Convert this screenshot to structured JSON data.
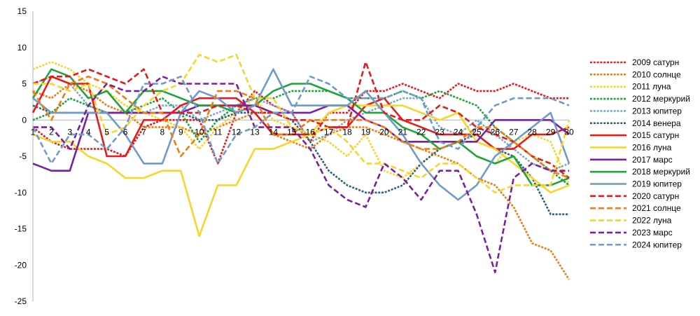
{
  "chart_data": {
    "type": "line",
    "x": [
      1,
      2,
      3,
      4,
      5,
      6,
      7,
      8,
      9,
      10,
      11,
      12,
      13,
      14,
      15,
      16,
      17,
      18,
      19,
      20,
      21,
      22,
      23,
      24,
      25,
      26,
      27,
      28,
      29,
      30
    ],
    "xtick_labels": [
      "1",
      "2",
      "3",
      "4",
      "5",
      "6",
      "7",
      "8",
      "9",
      "10",
      "11",
      "12",
      "13",
      "14",
      "15",
      "16",
      "17",
      "18",
      "19",
      "20",
      "21",
      "22",
      "23",
      "24",
      "25",
      "26",
      "27",
      "28",
      "29",
      "30"
    ],
    "ylim": [
      -25,
      15
    ],
    "ytick_values": [
      -25,
      -20,
      -15,
      -10,
      -5,
      0,
      5,
      10,
      15
    ],
    "ytick_labels": [
      "-25",
      "-20",
      "-15",
      "-10",
      "-5",
      "0",
      "5",
      "10",
      "15"
    ],
    "grid": false,
    "legend": "right",
    "series": [
      {
        "name": "2009 сатурн",
        "color": "#e41a1c",
        "style": "dotted",
        "values": [
          -1,
          -3,
          -4,
          -4,
          -4,
          -5,
          -1,
          0,
          0,
          0,
          -6,
          1,
          4,
          2,
          1,
          -3,
          1,
          1,
          4,
          4,
          5,
          4,
          3,
          5,
          4,
          4,
          5,
          4,
          3,
          3
        ]
      },
      {
        "name": "2010 солнце",
        "color": "#f07c12",
        "style": "dotted",
        "values": [
          4,
          3,
          5,
          4,
          2,
          1,
          -1,
          -1,
          -1,
          -2,
          -1,
          0,
          1,
          -2,
          -3,
          -4,
          -2,
          -1,
          -1,
          -2,
          -3,
          -4,
          -5,
          -6,
          -8,
          -9,
          -12,
          -17,
          -18,
          -22
        ]
      },
      {
        "name": "2011 луна",
        "color": "#f8d52a",
        "style": "dotted",
        "values": [
          7,
          8,
          7,
          5,
          4,
          2,
          1,
          0,
          -1,
          -4,
          -1,
          1,
          3,
          0,
          -1,
          -2,
          -3,
          -5,
          -2,
          -7,
          -8,
          -6,
          -4,
          -3,
          -5,
          -6,
          -3,
          -2,
          -3,
          -9
        ]
      },
      {
        "name": "2012 меркурий",
        "color": "#1ea53a",
        "style": "dotted",
        "values": [
          0,
          1,
          3,
          2,
          1,
          1,
          2,
          3,
          1,
          -3,
          0,
          2,
          3,
          3,
          4,
          4,
          4,
          3,
          3,
          3,
          4,
          3,
          4,
          3,
          2,
          -1,
          -3,
          -5,
          -7,
          -9
        ]
      },
      {
        "name": "2013 юпитер",
        "color": "#7fa8c9",
        "style": "dotted",
        "values": [
          5,
          6,
          5,
          2,
          1,
          1,
          1,
          2,
          2,
          0,
          1,
          2,
          3,
          2,
          1,
          -3,
          -2,
          0,
          1,
          2,
          3,
          3,
          -1,
          -2,
          0,
          -2,
          -4,
          -6,
          -7,
          -6
        ]
      },
      {
        "name": "2014 венера",
        "color": "#2f5f7f",
        "style": "dotted",
        "values": [
          2,
          1,
          1,
          1,
          1,
          1,
          1,
          1,
          1,
          0,
          0,
          1,
          1,
          1,
          0,
          -3,
          -7,
          -9,
          -10,
          -10,
          -9,
          -6,
          -4,
          -3,
          -2,
          -4,
          -5,
          -8,
          -13,
          -13
        ]
      },
      {
        "name": "2015 сатурн",
        "color": "#e41a1c",
        "style": "solid",
        "values": [
          1,
          6,
          5,
          5,
          -5,
          -5,
          0,
          0,
          2,
          3,
          3,
          3,
          1,
          -2,
          -2,
          -2,
          -1,
          -1,
          2,
          3,
          0,
          -1,
          -2,
          -2,
          -2,
          -4,
          -4,
          -2,
          -2,
          -1
        ]
      },
      {
        "name": "2016 луна",
        "color": "#f8d52a",
        "style": "solid",
        "values": [
          -2,
          -3,
          -3,
          -5,
          -6,
          -8,
          -8,
          -7,
          -7,
          -16,
          -9,
          -9,
          -4,
          -4,
          -3,
          -2,
          1,
          2,
          2,
          2,
          2,
          1,
          0,
          1,
          -3,
          -4,
          -6,
          -8,
          -10,
          -9
        ]
      },
      {
        "name": "2017 марс",
        "color": "#7b1fa2",
        "style": "solid",
        "values": [
          -6,
          -7,
          -7,
          1,
          1,
          1,
          1,
          1,
          1,
          2,
          2,
          2,
          2,
          1,
          1,
          1,
          2,
          2,
          0,
          -1,
          -3,
          -3,
          -3,
          -3,
          -3,
          0,
          0,
          0,
          0,
          -2
        ]
      },
      {
        "name": "2018 меркурий",
        "color": "#1ea53a",
        "style": "solid",
        "values": [
          3,
          7,
          6,
          3,
          4,
          1,
          4,
          4,
          3,
          2,
          2,
          1,
          2,
          4,
          5,
          5,
          4,
          3,
          1,
          1,
          -1,
          -2,
          -4,
          -3,
          -5,
          -6,
          -5,
          -9,
          -9,
          -8
        ]
      },
      {
        "name": "2019 юпитер",
        "color": "#6f9acb",
        "style": "solid",
        "values": [
          3,
          1,
          1,
          1,
          1,
          -2,
          -6,
          -6,
          1,
          4,
          3,
          1,
          2,
          7,
          2,
          2,
          2,
          2,
          4,
          1,
          -2,
          -6,
          -9,
          -11,
          -9,
          -5,
          -3,
          -1,
          1,
          -6
        ]
      },
      {
        "name": "2020 сатурн",
        "color": "#e41a1c",
        "style": "dashed",
        "values": [
          5,
          6,
          6,
          7,
          6,
          5,
          7,
          1,
          1,
          1,
          2,
          2,
          1,
          1,
          0,
          0,
          -1,
          -1,
          8,
          1,
          0,
          0,
          2,
          1,
          -1,
          -2,
          -3,
          -5,
          -6,
          -8
        ]
      },
      {
        "name": "2021 солнце",
        "color": "#f07c12",
        "style": "dashed",
        "values": [
          4,
          0,
          5,
          6,
          5,
          3,
          1,
          1,
          -5,
          -2,
          4,
          4,
          3,
          -2,
          -2,
          0,
          0,
          0,
          0,
          -1,
          -3,
          -4,
          -4,
          -3,
          -1,
          -1,
          -3,
          -5,
          -7,
          -8
        ]
      },
      {
        "name": "2022 луна",
        "color": "#f8d52a",
        "style": "dashed",
        "values": [
          5,
          5,
          4,
          5,
          -2,
          -1,
          2,
          4,
          5,
          9,
          8,
          9,
          3,
          3,
          -1,
          -2,
          -1,
          -3,
          -6,
          -6,
          -7,
          -8,
          -6,
          -6,
          -8,
          -10,
          -9,
          -9,
          -9,
          0
        ]
      },
      {
        "name": "2023 марс",
        "color": "#7b1fa2",
        "style": "dashed",
        "values": [
          -1,
          -1,
          -4,
          2,
          5,
          4,
          4,
          6,
          5,
          5,
          5,
          5,
          -1,
          -1,
          -1,
          -4,
          -9,
          -11,
          -12,
          -6,
          -8,
          -11,
          -7,
          -7,
          -13,
          -21,
          -8,
          -6,
          -7,
          -7
        ]
      },
      {
        "name": "2024 юпитер",
        "color": "#6f9acb",
        "style": "dashed",
        "values": [
          -1,
          -6,
          -2,
          -2,
          -4,
          -1,
          5,
          5,
          6,
          1,
          -6,
          -2,
          -1,
          1,
          1,
          6,
          5,
          3,
          3,
          3,
          4,
          3,
          -3,
          -4,
          -1,
          2,
          3,
          3,
          3,
          2
        ]
      }
    ]
  }
}
